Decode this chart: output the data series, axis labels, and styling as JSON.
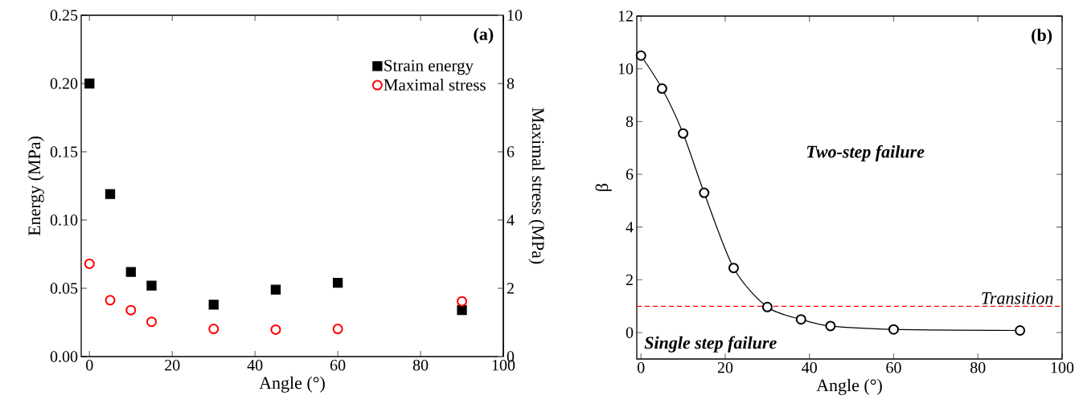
{
  "chart_data": [
    {
      "type": "scatter",
      "xlabel": "Angle (°)",
      "ylabel": "Energy (MPa)",
      "y2label": "Maximal stress (MPa)",
      "xlim": [
        -2,
        100
      ],
      "xticks": [
        0,
        20,
        40,
        60,
        80,
        100
      ],
      "ylim": [
        0,
        0.25
      ],
      "yticks": [
        {
          "value": 0,
          "label": "0.00"
        },
        0.05,
        {
          "value": 0.1,
          "label": "0.10"
        },
        0.15,
        {
          "value": 0.2,
          "label": "0.20"
        },
        0.25
      ],
      "y2lim": [
        0,
        10
      ],
      "y2ticks": [
        0,
        2,
        4,
        6,
        8,
        10
      ],
      "legend": "top right",
      "annotations": [
        "(a)"
      ],
      "series": [
        {
          "name": "Strain energy",
          "color": "#000000",
          "marker": "square",
          "x": [
            0,
            5,
            10,
            15,
            30,
            45,
            60,
            90
          ],
          "values": [
            0.2,
            0.119,
            0.062,
            0.052,
            0.038,
            0.049,
            0.054,
            0.034
          ]
        },
        {
          "name": "Maximal stress",
          "color": "#ff0000",
          "marker": "circle",
          "axis": "y2",
          "x": [
            0,
            5,
            10,
            15,
            30,
            45,
            60,
            90
          ],
          "values": [
            2.72,
            1.65,
            1.36,
            1.02,
            0.81,
            0.79,
            0.81,
            1.62
          ]
        }
      ]
    },
    {
      "type": "line",
      "xlabel": "Angle (°)",
      "ylabel": "β",
      "xlim": [
        -1,
        100
      ],
      "xticks": [
        0,
        20,
        40,
        60,
        80,
        100
      ],
      "ylim": [
        -1,
        12
      ],
      "yticks": [
        0,
        2,
        4,
        6,
        8,
        10,
        12
      ],
      "marker": "circle",
      "annotations": [
        "(b)",
        "Two-step failure",
        "Single step failure"
      ],
      "ref_lines": [
        {
          "axis": "y",
          "value": 1,
          "label": "Transition",
          "color": "#ff0000",
          "line_style": "dashed"
        }
      ],
      "series": [
        {
          "color": "#000000",
          "x": [
            0,
            5,
            10,
            15,
            22,
            30,
            38,
            45,
            60,
            90
          ],
          "values": [
            10.5,
            9.25,
            7.55,
            5.3,
            2.45,
            0.97,
            0.5,
            0.25,
            0.12,
            0.08
          ]
        }
      ]
    }
  ]
}
